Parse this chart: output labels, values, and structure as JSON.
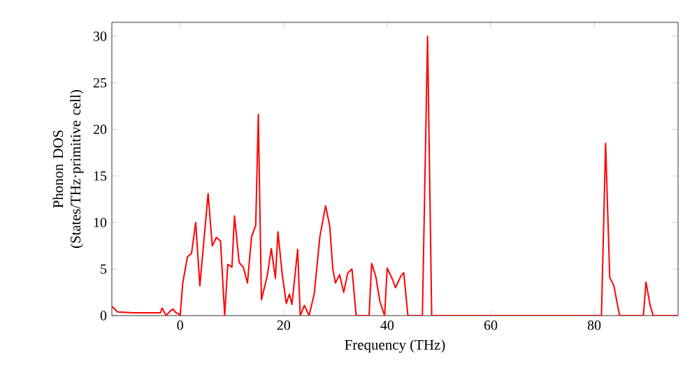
{
  "chart_data": {
    "type": "line",
    "xlabel": "Frequency (THz)",
    "ylabel": "Phonon DOS (States/THz·primitive cell)",
    "x": [
      -13.2,
      -12.1,
      -9,
      -3.8,
      -3.5,
      -2.7,
      -1.9,
      -1.4,
      -0.8,
      -0.3,
      0,
      0.5,
      1.4,
      2.2,
      3,
      3.8,
      5.4,
      6.2,
      7,
      7.8,
      8.6,
      9.2,
      10,
      10.5,
      11.4,
      12.2,
      13,
      13.8,
      14.6,
      15.1,
      15.7,
      16.8,
      17.6,
      18.4,
      18.9,
      19.7,
      20.5,
      21.1,
      21.6,
      22.7,
      23.2,
      24,
      24.9,
      25.9,
      27,
      28.1,
      28.9,
      29.5,
      30,
      30.8,
      31.6,
      32.4,
      33.2,
      34,
      36.5,
      37,
      37.8,
      38.6,
      39.5,
      40,
      41.1,
      41.6,
      42.7,
      43.2,
      44,
      46.8,
      47.8,
      48.6,
      81.4,
      82.2,
      83,
      83.8,
      84.9,
      89.5,
      90,
      90.8,
      91.4,
      96.2
    ],
    "series": [
      {
        "color": "#ff0000",
        "values": [
          1.0,
          0.4,
          0.3,
          0.3,
          0.8,
          0,
          0.5,
          0.7,
          0.3,
          0.2,
          0,
          3.5,
          6.3,
          6.7,
          10,
          3.2,
          13.1,
          7.5,
          8.4,
          8,
          0,
          5.5,
          5.2,
          10.7,
          5.7,
          5.2,
          3.5,
          8.5,
          9.7,
          21.6,
          1.7,
          4.2,
          7.2,
          4,
          9,
          4.5,
          1.3,
          2.3,
          1.2,
          7.1,
          0,
          1.1,
          0,
          2.3,
          8.5,
          11.8,
          9.6,
          5,
          3.5,
          4.4,
          2.5,
          4.6,
          5,
          0,
          0,
          5.6,
          4.2,
          1.5,
          0,
          5.1,
          3.8,
          3,
          4.3,
          4.6,
          0,
          0,
          30,
          0,
          0,
          18.5,
          4.1,
          3.2,
          0,
          0,
          3.6,
          1.1,
          0,
          0
        ]
      }
    ],
    "xlim": [
      -13.2,
      96.2
    ],
    "ylim": [
      0,
      31.5
    ],
    "xticks": [
      0,
      20,
      40,
      60,
      80
    ],
    "yticks": [
      0,
      5,
      10,
      15,
      20,
      25,
      30
    ],
    "grid": false,
    "marker": "none",
    "line_style": "solid"
  }
}
